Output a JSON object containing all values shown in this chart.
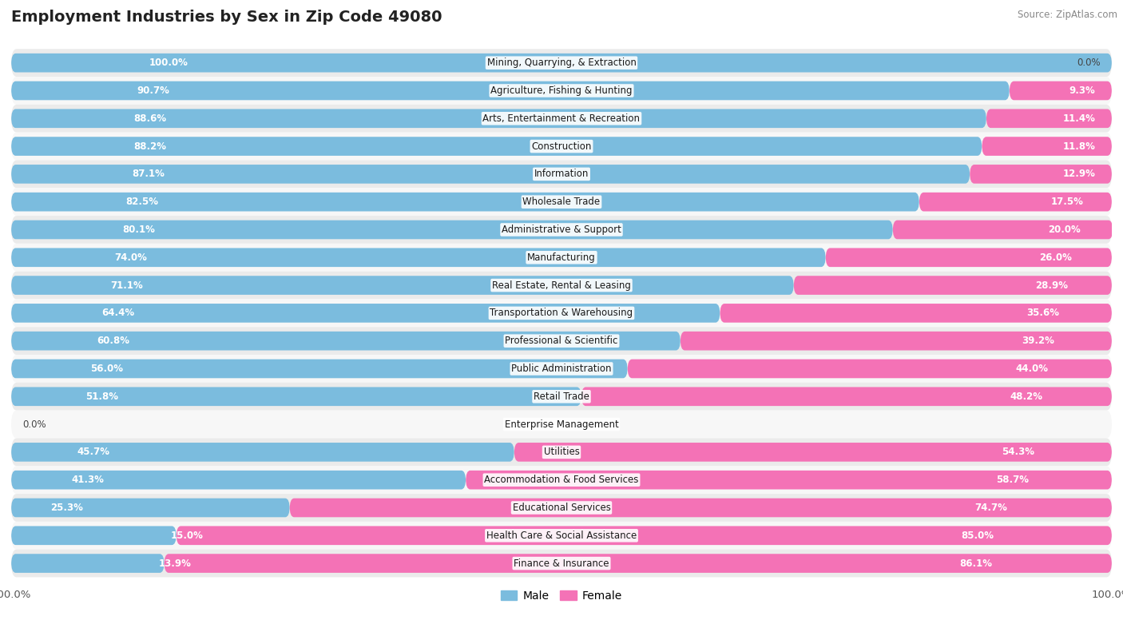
{
  "title": "Employment Industries by Sex in Zip Code 49080",
  "source": "Source: ZipAtlas.com",
  "industries": [
    {
      "name": "Mining, Quarrying, & Extraction",
      "male": 100.0,
      "female": 0.0
    },
    {
      "name": "Agriculture, Fishing & Hunting",
      "male": 90.7,
      "female": 9.3
    },
    {
      "name": "Arts, Entertainment & Recreation",
      "male": 88.6,
      "female": 11.4
    },
    {
      "name": "Construction",
      "male": 88.2,
      "female": 11.8
    },
    {
      "name": "Information",
      "male": 87.1,
      "female": 12.9
    },
    {
      "name": "Wholesale Trade",
      "male": 82.5,
      "female": 17.5
    },
    {
      "name": "Administrative & Support",
      "male": 80.1,
      "female": 20.0
    },
    {
      "name": "Manufacturing",
      "male": 74.0,
      "female": 26.0
    },
    {
      "name": "Real Estate, Rental & Leasing",
      "male": 71.1,
      "female": 28.9
    },
    {
      "name": "Transportation & Warehousing",
      "male": 64.4,
      "female": 35.6
    },
    {
      "name": "Professional & Scientific",
      "male": 60.8,
      "female": 39.2
    },
    {
      "name": "Public Administration",
      "male": 56.0,
      "female": 44.0
    },
    {
      "name": "Retail Trade",
      "male": 51.8,
      "female": 48.2
    },
    {
      "name": "Enterprise Management",
      "male": 0.0,
      "female": 0.0
    },
    {
      "name": "Utilities",
      "male": 45.7,
      "female": 54.3
    },
    {
      "name": "Accommodation & Food Services",
      "male": 41.3,
      "female": 58.7
    },
    {
      "name": "Educational Services",
      "male": 25.3,
      "female": 74.7
    },
    {
      "name": "Health Care & Social Assistance",
      "male": 15.0,
      "female": 85.0
    },
    {
      "name": "Finance & Insurance",
      "male": 13.9,
      "female": 86.1
    }
  ],
  "male_color": "#7bbcde",
  "female_color": "#f472b6",
  "row_bg_even": "#ebebeb",
  "row_bg_odd": "#f7f7f7",
  "title_fontsize": 14,
  "bar_height": 0.68,
  "bar_label_fontsize": 8.5,
  "industry_label_fontsize": 8.5,
  "legend_male": "Male",
  "legend_female": "Female",
  "xlim_min": 0,
  "xlim_max": 100
}
